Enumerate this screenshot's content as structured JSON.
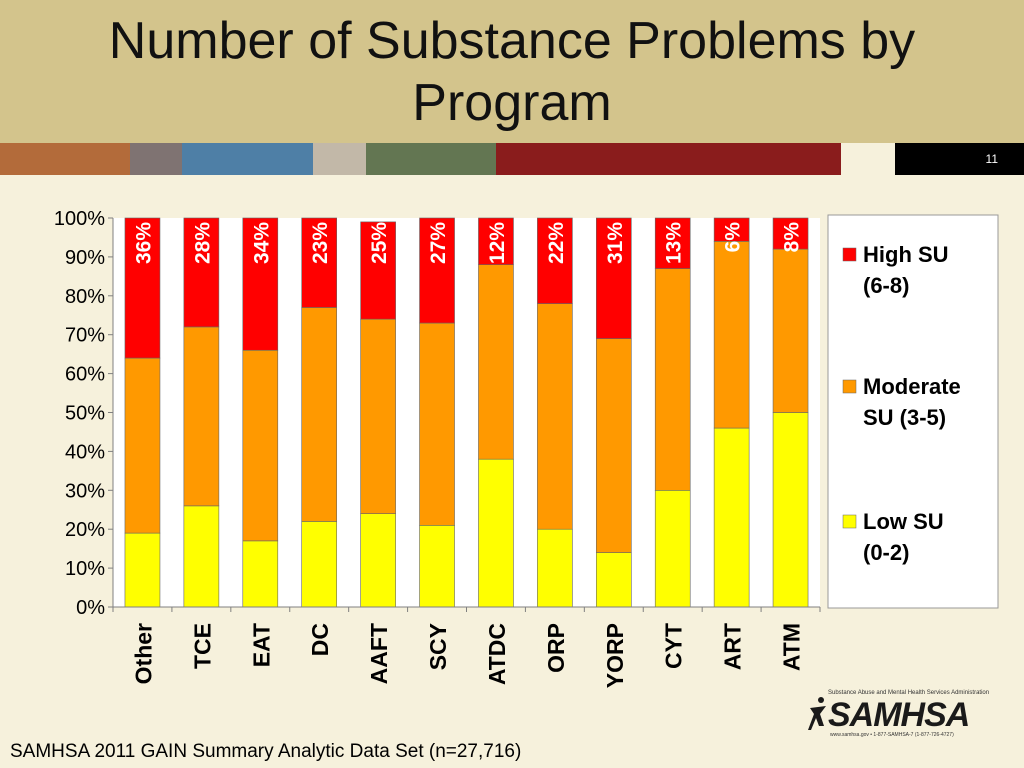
{
  "slide": {
    "title_line1": "Number of Substance Problems by",
    "title_line2": "Program",
    "page_number": "11",
    "footer": "SAMHSA 2011 GAIN Summary Analytic Data Set (n=27,716)",
    "colors": {
      "header": "#d3c48c",
      "background": "#f6f1dc",
      "band": [
        "#b36b3a",
        "#7f7372",
        "#4e7fa6",
        "#c2b8a8",
        "#637652",
        "#8a1c1c",
        "#f6f1dc",
        "#000000"
      ]
    }
  },
  "logo": {
    "name": "SAMHSA",
    "top_text": "Substance Abuse and Mental Health Services Administration",
    "bottom_text": "www.samhsa.gov • 1-877-SAMHSA-7 (1-877-726-4727)"
  },
  "chart_data": {
    "type": "bar",
    "stacked": true,
    "percent_stacked": true,
    "categories": [
      "Other",
      "TCE",
      "EAT",
      "DC",
      "AAFT",
      "SCY",
      "ATDC",
      "ORP",
      "YORP",
      "CYT",
      "ART",
      "ATM"
    ],
    "series": [
      {
        "name": "Low SU (0-2)",
        "legend_lines": [
          "Low SU",
          "(0-2)"
        ],
        "color": "#ffff00",
        "values": [
          19,
          26,
          17,
          22,
          24,
          21,
          38,
          20,
          14,
          30,
          46,
          50
        ]
      },
      {
        "name": "Moderate SU (3-5)",
        "legend_lines": [
          "Moderate",
          "SU (3-5)"
        ],
        "color": "#ff9900",
        "values": [
          45,
          46,
          49,
          55,
          50,
          52,
          50,
          58,
          55,
          57,
          48,
          42
        ]
      },
      {
        "name": "High SU (6-8)",
        "legend_lines": [
          "High SU",
          "(6-8)"
        ],
        "color": "#ff0000",
        "values": [
          36,
          28,
          34,
          23,
          25,
          27,
          12,
          22,
          31,
          13,
          6,
          8
        ]
      }
    ],
    "labeled_series": "High SU (6-8)",
    "data_labels": [
      "36%",
      "28%",
      "34%",
      "23%",
      "25%",
      "27%",
      "12%",
      "22%",
      "31%",
      "13%",
      "6%",
      "8%"
    ],
    "ylim": [
      0,
      100
    ],
    "yticks": [
      "0%",
      "10%",
      "20%",
      "30%",
      "40%",
      "50%",
      "60%",
      "70%",
      "80%",
      "90%",
      "100%"
    ],
    "grid": false,
    "legend_position": "right"
  }
}
